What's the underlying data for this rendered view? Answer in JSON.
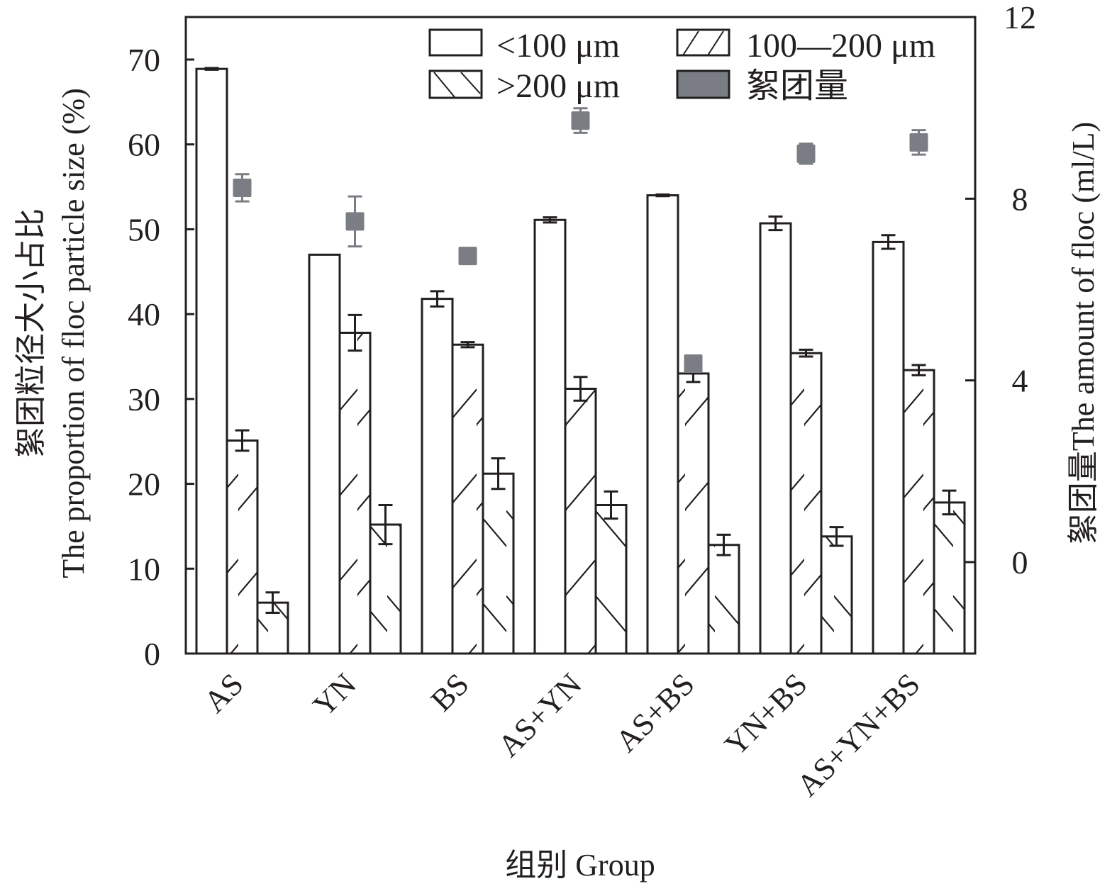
{
  "chart_data": {
    "type": "bar",
    "title": "",
    "xlabel": "组别 Group",
    "ylabel": "絮团粒径大小占比 The proportion of floc particle size (%)",
    "ylabel_line1": "絮团粒径大小占比",
    "ylabel_line2": "The proportion of floc particle size (%)",
    "y2label": "絮团量The amount of floc (ml/L)",
    "ylim": [
      0,
      75
    ],
    "y2lim": [
      -2,
      12
    ],
    "yticks": [
      0,
      10,
      20,
      30,
      40,
      50,
      60,
      70
    ],
    "y2ticks": [
      0,
      4,
      8,
      12
    ],
    "grid": false,
    "legend_position": "top-right",
    "categories": [
      "AS",
      "YN",
      "BS",
      "AS+YN",
      "AS+BS",
      "YN+BS",
      "AS+YN+BS"
    ],
    "series": [
      {
        "name": "<100 μm",
        "axis": "left",
        "pattern": "none",
        "values": [
          68.9,
          47.0,
          41.8,
          51.1,
          54.0,
          50.7,
          48.5
        ],
        "errors": [
          0.1,
          0,
          0.9,
          0.3,
          0.1,
          0.8,
          0.8
        ]
      },
      {
        "name": "100—200 μm",
        "axis": "left",
        "pattern": "forward-hatch",
        "values": [
          25.1,
          37.8,
          36.4,
          31.2,
          33.0,
          35.4,
          33.4
        ],
        "errors": [
          1.2,
          2.1,
          0.3,
          1.4,
          1.0,
          0.4,
          0.6
        ]
      },
      {
        "name": ">200 μm",
        "axis": "left",
        "pattern": "back-hatch",
        "values": [
          6.0,
          15.2,
          21.2,
          17.5,
          12.8,
          13.8,
          17.8
        ],
        "errors": [
          1.2,
          2.3,
          1.8,
          1.6,
          1.2,
          1.1,
          1.4
        ]
      },
      {
        "name": "絮团量",
        "axis": "right",
        "pattern": "square-marker",
        "values": [
          8.24,
          7.5,
          6.74,
          9.72,
          4.37,
          8.99,
          9.24
        ],
        "errors": [
          0.3,
          0.55,
          0,
          0.27,
          0,
          0.22,
          0.27
        ]
      }
    ],
    "legend": [
      "<100 μm",
      "100—200 μm",
      ">200 μm",
      "絮团量"
    ],
    "colors": {
      "bar_stroke": "#231f20",
      "bar_fill": "#ffffff",
      "marker": "#7a7d83"
    }
  }
}
